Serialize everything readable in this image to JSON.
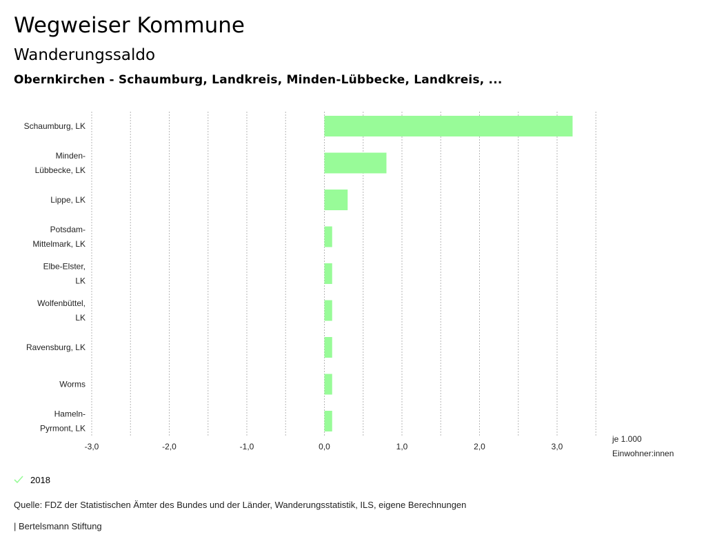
{
  "header": {
    "title": "Wegweiser Kommune",
    "subtitle": "Wanderungssaldo",
    "region": "Obernkirchen - Schaumburg, Landkreis, Minden-Lübbecke, Landkreis, ..."
  },
  "chart_data": {
    "type": "bar",
    "orientation": "horizontal",
    "categories": [
      [
        "Schaumburg, LK"
      ],
      [
        "Minden-",
        "Lübbecke, LK"
      ],
      [
        "Lippe, LK"
      ],
      [
        "Potsdam-",
        "Mittelmark, LK"
      ],
      [
        "Elbe-Elster,",
        "LK"
      ],
      [
        "Wolfenbüttel,",
        "LK"
      ],
      [
        "Ravensburg, LK"
      ],
      [
        "Worms"
      ],
      [
        "Hameln-",
        "Pyrmont, LK"
      ]
    ],
    "series": [
      {
        "name": "2018",
        "values": [
          3.2,
          0.8,
          0.3,
          0.1,
          0.1,
          0.1,
          0.1,
          0.1,
          0.1
        ]
      }
    ],
    "xlim": [
      -3.0,
      3.5
    ],
    "xticks": [
      "-3,0",
      "-2,0",
      "-1,0",
      "0,0",
      "1,0",
      "2,0",
      "3,0"
    ],
    "xtick_values": [
      -3,
      -2,
      -1,
      0,
      1,
      2,
      3
    ],
    "xlabel": [
      "je 1.000",
      "Einwohner:innen"
    ],
    "grid": true,
    "bar_color": "#98fb98"
  },
  "legend": {
    "label": "2018",
    "color": "#98fb98"
  },
  "footer": {
    "source": "Quelle: FDZ der Statistischen Ämter des Bundes und der Länder, Wanderungsstatistik, ILS, eigene Berechnungen",
    "brand": "| Bertelsmann Stiftung"
  }
}
